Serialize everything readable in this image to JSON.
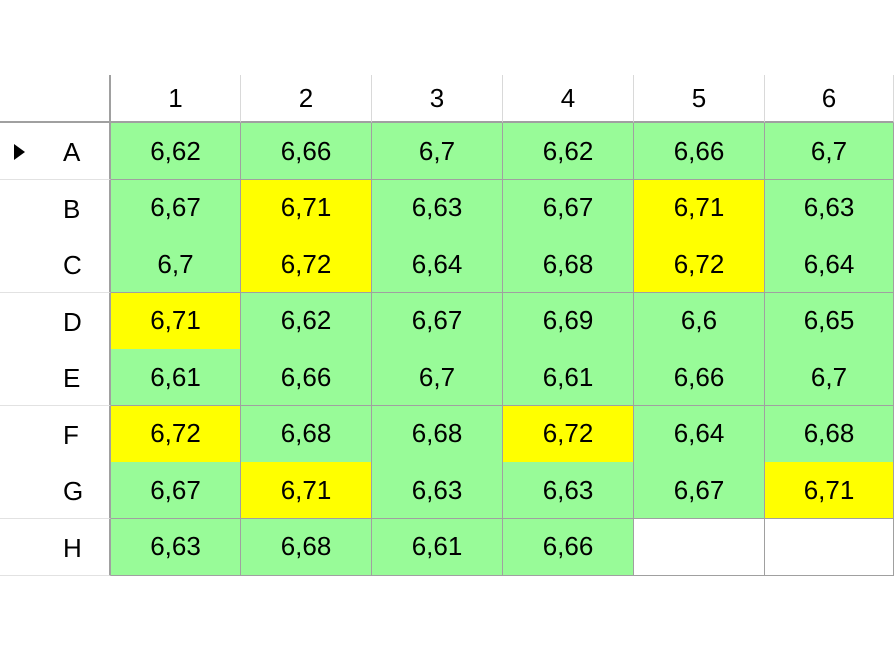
{
  "grid": {
    "columns": [
      "1",
      "2",
      "3",
      "4",
      "5",
      "6"
    ],
    "rows": [
      {
        "label": "A",
        "current": true,
        "values": [
          "6,62",
          "6,66",
          "6,7",
          "6,62",
          "6,66",
          "6,7"
        ],
        "status": [
          "ok",
          "ok",
          "ok",
          "ok",
          "ok",
          "ok"
        ]
      },
      {
        "label": "B",
        "current": false,
        "values": [
          "6,67",
          "6,71",
          "6,63",
          "6,67",
          "6,71",
          "6,63"
        ],
        "status": [
          "ok",
          "warn",
          "ok",
          "ok",
          "warn",
          "ok"
        ]
      },
      {
        "label": "C",
        "current": false,
        "values": [
          "6,7",
          "6,72",
          "6,64",
          "6,68",
          "6,72",
          "6,64"
        ],
        "status": [
          "ok",
          "warn",
          "ok",
          "ok",
          "warn",
          "ok"
        ]
      },
      {
        "label": "D",
        "current": false,
        "values": [
          "6,71",
          "6,62",
          "6,67",
          "6,69",
          "6,6",
          "6,65"
        ],
        "status": [
          "warn",
          "ok",
          "ok",
          "ok",
          "ok",
          "ok"
        ]
      },
      {
        "label": "E",
        "current": false,
        "values": [
          "6,61",
          "6,66",
          "6,7",
          "6,61",
          "6,66",
          "6,7"
        ],
        "status": [
          "ok",
          "ok",
          "ok",
          "ok",
          "ok",
          "ok"
        ]
      },
      {
        "label": "F",
        "current": false,
        "values": [
          "6,72",
          "6,68",
          "6,68",
          "6,72",
          "6,64",
          "6,68"
        ],
        "status": [
          "warn",
          "ok",
          "ok",
          "warn",
          "ok",
          "ok"
        ]
      },
      {
        "label": "G",
        "current": false,
        "values": [
          "6,67",
          "6,71",
          "6,63",
          "6,63",
          "6,67",
          "6,71"
        ],
        "status": [
          "ok",
          "warn",
          "ok",
          "ok",
          "ok",
          "warn"
        ]
      },
      {
        "label": "H",
        "current": false,
        "values": [
          "6,63",
          "6,68",
          "6,61",
          "6,66",
          "",
          ""
        ],
        "status": [
          "ok",
          "ok",
          "ok",
          "ok",
          "empty",
          "empty"
        ]
      }
    ]
  },
  "colors": {
    "ok": "#98fb98",
    "warn": "#ffff00",
    "empty": "#ffffff",
    "grid_line": "#a0a0a0"
  },
  "icons": {
    "current_row": "row-pointer-icon"
  }
}
